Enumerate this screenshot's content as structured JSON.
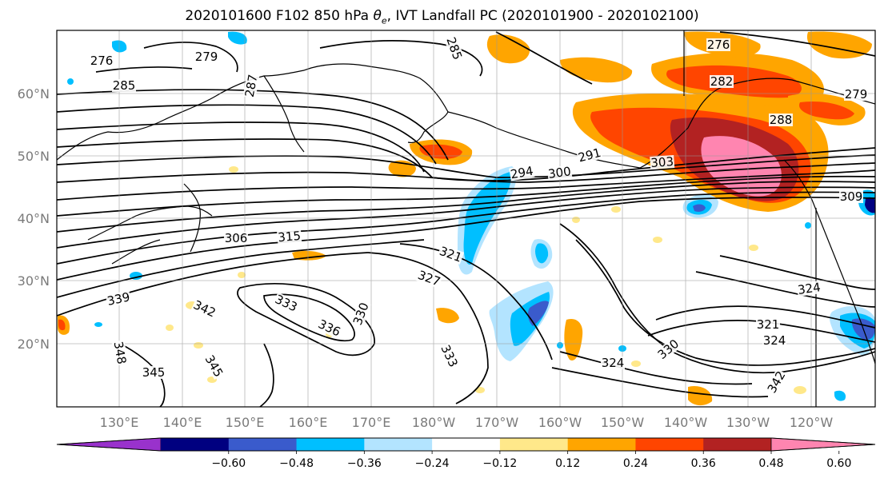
{
  "title": {
    "prefix": "2020101600 F102 850 hPa ",
    "theta": "θ",
    "sub": "e",
    "suffix": ", IVT Landfall PC (2020101900 - 2020102100)"
  },
  "map": {
    "lat_labels": [
      "60°N",
      "50°N",
      "40°N",
      "30°N",
      "20°N"
    ],
    "lon_labels": [
      "130°E",
      "140°E",
      "150°E",
      "160°E",
      "170°E",
      "180°W",
      "170°W",
      "160°W",
      "150°W",
      "140°W",
      "130°W",
      "120°W"
    ],
    "contour_labels": [
      "279",
      "276",
      "285",
      "287",
      "285",
      "276",
      "282",
      "279",
      "288",
      "291",
      "294",
      "300",
      "303",
      "309",
      "306",
      "315",
      "321",
      "327",
      "324",
      "339",
      "342",
      "333",
      "336",
      "330",
      "333",
      "348",
      "345",
      "345",
      "324",
      "330",
      "321",
      "324",
      "342"
    ]
  },
  "colorbar": {
    "tick_labels": [
      "−0.60",
      "−0.48",
      "−0.36",
      "−0.24",
      "−0.12",
      "0.12",
      "0.24",
      "0.36",
      "0.48",
      "0.60"
    ],
    "bins": [
      {
        "color": "#9932cc"
      },
      {
        "color": "#000080"
      },
      {
        "color": "#3a5bcc"
      },
      {
        "color": "#00bfff"
      },
      {
        "color": "#b3e4ff"
      },
      {
        "color": "#ffffff"
      },
      {
        "color": "#ffe88a"
      },
      {
        "color": "#ffa500"
      },
      {
        "color": "#ff4500"
      },
      {
        "color": "#b22222"
      },
      {
        "color": "#ff85b0"
      }
    ]
  }
}
